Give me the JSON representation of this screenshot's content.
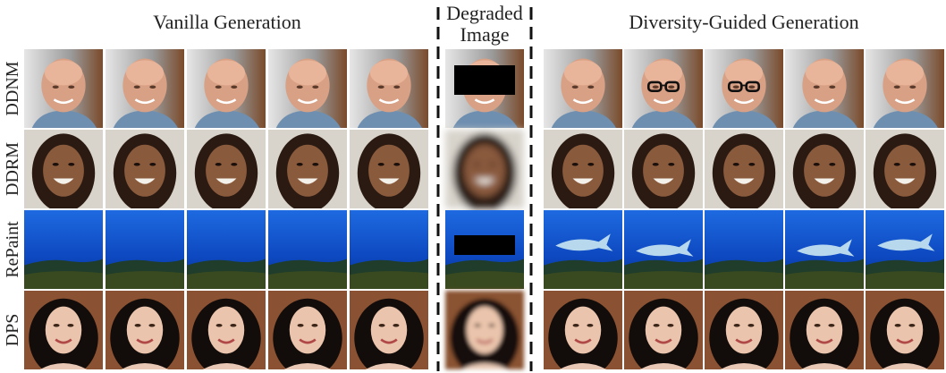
{
  "headers": {
    "vanilla": "Vanilla Generation",
    "degraded": [
      "Degraded",
      "Image"
    ],
    "diversity": "Diversity-Guided Generation"
  },
  "row_labels": [
    "DDNM",
    "DDRM",
    "RePaint",
    "DPS"
  ]
}
